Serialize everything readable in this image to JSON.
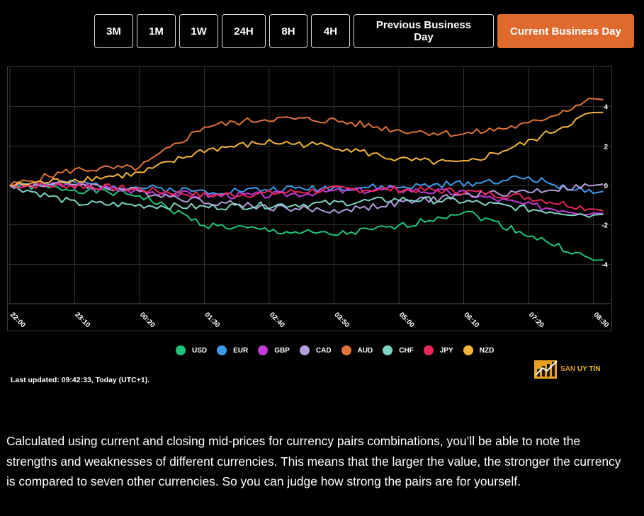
{
  "timeframes": [
    {
      "label": "3M",
      "active": false
    },
    {
      "label": "1M",
      "active": false
    },
    {
      "label": "1W",
      "active": false
    },
    {
      "label": "24H",
      "active": false
    },
    {
      "label": "8H",
      "active": false
    },
    {
      "label": "4H",
      "active": false
    },
    {
      "label": "Previous Business Day",
      "active": false
    },
    {
      "label": "Current Business Day",
      "active": true
    }
  ],
  "chart_data": {
    "type": "line",
    "x": [
      "22:00",
      "23:10",
      "00:20",
      "01:30",
      "02:40",
      "03:50",
      "05:00",
      "06:10",
      "07:20",
      "08:30"
    ],
    "ylim": [
      -6,
      6
    ],
    "yticks": [
      4,
      2,
      0,
      -2,
      -4
    ],
    "grid": true,
    "legend_position": "bottom",
    "series": [
      {
        "name": "USD",
        "color": "#1fc57a",
        "values": [
          0,
          -0.2,
          -0.5,
          -2.0,
          -2.3,
          -2.5,
          -2.1,
          -1.3,
          -2.5,
          -3.8
        ]
      },
      {
        "name": "EUR",
        "color": "#3d9be9",
        "values": [
          0,
          0.1,
          -0.1,
          -0.3,
          -0.2,
          -0.1,
          -0.1,
          0.1,
          0.4,
          -0.4
        ]
      },
      {
        "name": "GBP",
        "color": "#c23ad6",
        "values": [
          0,
          0,
          -0.3,
          -0.5,
          -0.5,
          -0.3,
          -0.2,
          -0.4,
          -1.0,
          -1.4
        ]
      },
      {
        "name": "CAD",
        "color": "#b39ddb",
        "values": [
          0,
          0.1,
          -0.3,
          -0.8,
          -1.1,
          -1.3,
          -0.9,
          -0.5,
          -0.3,
          0
        ]
      },
      {
        "name": "AUD",
        "color": "#e0733a",
        "values": [
          0,
          0.8,
          0.9,
          3.0,
          3.4,
          3.3,
          2.8,
          2.6,
          3.1,
          4.4
        ]
      },
      {
        "name": "CHF",
        "color": "#7fd4c4",
        "values": [
          0,
          -0.9,
          -1.0,
          -1.1,
          -1.0,
          -0.9,
          -0.7,
          -0.8,
          -1.2,
          -1.5
        ]
      },
      {
        "name": "JPY",
        "color": "#e8265b",
        "values": [
          0,
          0,
          -0.2,
          -0.5,
          -0.4,
          -0.2,
          -0.2,
          -0.3,
          -0.6,
          -1.2
        ]
      },
      {
        "name": "NZD",
        "color": "#f3b53a",
        "values": [
          0,
          0.3,
          0.6,
          1.8,
          2.2,
          2.0,
          1.3,
          1.1,
          2.2,
          3.7
        ]
      }
    ]
  },
  "last_updated": "Last updated: 09:42:33, Today (UTC+1).",
  "watermark": {
    "part1": "SÀN ",
    "part2": "UY TÍN"
  },
  "description": "Calculated using current and closing mid-prices for currency pairs combinations, you’ll be able to note the strengths and weaknesses of different currencies. This means that the larger the value, the stronger the currency is compared to seven other currencies. So you can judge how strong the pairs are for yourself."
}
